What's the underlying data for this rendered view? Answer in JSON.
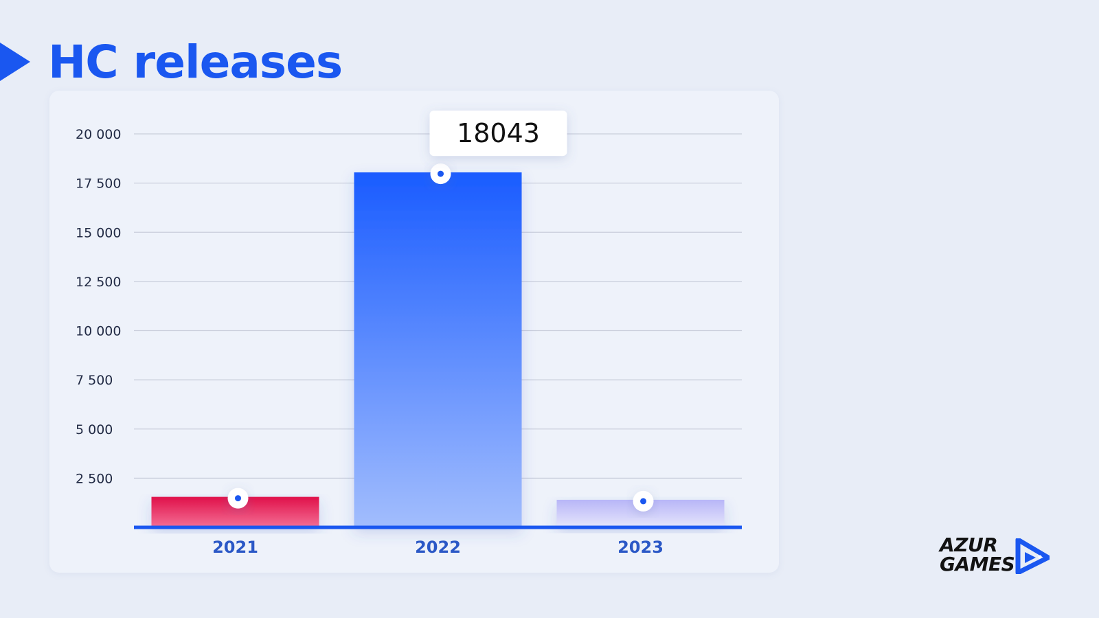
{
  "page": {
    "title": "HC releases"
  },
  "brand": {
    "line1": "AZUR",
    "line2": "GAMES"
  },
  "colors": {
    "accent": "#1a57f0",
    "bar_2021_top": "#e0104a",
    "bar_2021_bottom": "#f46f95",
    "bar_2022_top": "#1a5cff",
    "bar_2022_bottom": "#a2bdfd",
    "bar_2023_top": "#b8b6f8",
    "bar_2023_bottom": "#e6e6fb",
    "category_label": "#2b58c6",
    "grid": "#c9cedb"
  },
  "chart_data": {
    "type": "bar",
    "title": "HC releases",
    "xlabel": "",
    "ylabel": "",
    "categories": [
      "2021",
      "2022",
      "2023"
    ],
    "values": [
      1550,
      18043,
      1400
    ],
    "ylim": [
      0,
      20000
    ],
    "yticks": [
      2500,
      5000,
      7500,
      10000,
      12500,
      15000,
      17500,
      20000
    ],
    "ytick_labels": [
      "2 500",
      "5 000",
      "7 500",
      "10 000",
      "12 500",
      "15 000",
      "17 500",
      "20 000"
    ],
    "data_labels": [
      {
        "category": "2022",
        "text": "18043"
      }
    ],
    "grid": true,
    "legend": "none"
  }
}
